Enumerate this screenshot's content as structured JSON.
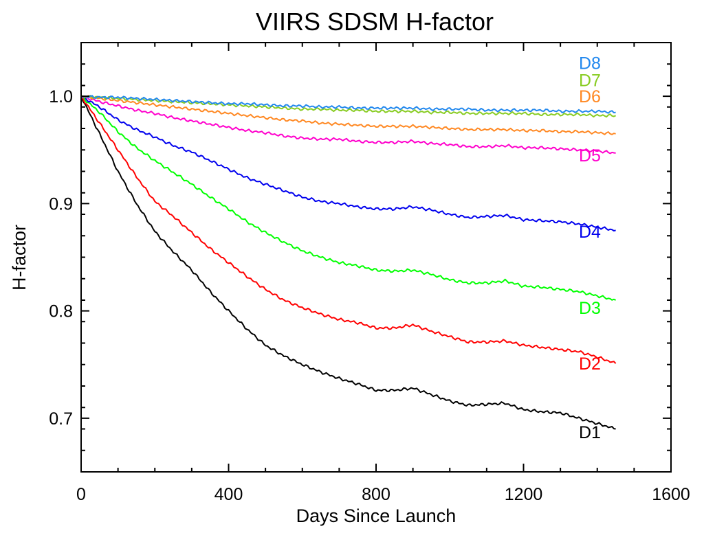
{
  "chart_data": {
    "type": "line",
    "title": "VIIRS SDSM H-factor",
    "xlabel": "Days Since Launch",
    "ylabel": "H-factor",
    "xlim": [
      0,
      1600
    ],
    "ylim": [
      0.65,
      1.05
    ],
    "xticks": [
      0,
      400,
      800,
      1200,
      1600
    ],
    "xtick_labels": [
      "0",
      "400",
      "800",
      "1200",
      "1600"
    ],
    "yticks": [
      0.7,
      0.8,
      0.9,
      1.0
    ],
    "ytick_labels": [
      "0.7",
      "0.8",
      "0.9",
      "1.0"
    ],
    "series": [
      {
        "name": "D1",
        "color": "#000000",
        "label_at": [
          1350,
          0.687
        ],
        "points": [
          [
            0,
            1.0
          ],
          [
            50,
            0.965
          ],
          [
            100,
            0.93
          ],
          [
            150,
            0.9
          ],
          [
            200,
            0.874
          ],
          [
            250,
            0.855
          ],
          [
            300,
            0.838
          ],
          [
            350,
            0.818
          ],
          [
            400,
            0.8
          ],
          [
            450,
            0.783
          ],
          [
            500,
            0.768
          ],
          [
            550,
            0.758
          ],
          [
            600,
            0.75
          ],
          [
            650,
            0.743
          ],
          [
            700,
            0.737
          ],
          [
            750,
            0.732
          ],
          [
            800,
            0.726
          ],
          [
            850,
            0.726
          ],
          [
            900,
            0.728
          ],
          [
            950,
            0.722
          ],
          [
            1000,
            0.716
          ],
          [
            1050,
            0.712
          ],
          [
            1100,
            0.713
          ],
          [
            1150,
            0.714
          ],
          [
            1200,
            0.708
          ],
          [
            1250,
            0.706
          ],
          [
            1300,
            0.705
          ],
          [
            1350,
            0.7
          ],
          [
            1400,
            0.695
          ],
          [
            1450,
            0.69
          ]
        ]
      },
      {
        "name": "D2",
        "color": "#ff0000",
        "label_at": [
          1350,
          0.751
        ],
        "points": [
          [
            0,
            1.0
          ],
          [
            50,
            0.975
          ],
          [
            100,
            0.95
          ],
          [
            150,
            0.925
          ],
          [
            200,
            0.902
          ],
          [
            250,
            0.888
          ],
          [
            300,
            0.873
          ],
          [
            350,
            0.858
          ],
          [
            400,
            0.845
          ],
          [
            450,
            0.832
          ],
          [
            500,
            0.82
          ],
          [
            550,
            0.81
          ],
          [
            600,
            0.803
          ],
          [
            650,
            0.797
          ],
          [
            700,
            0.792
          ],
          [
            750,
            0.789
          ],
          [
            800,
            0.784
          ],
          [
            850,
            0.784
          ],
          [
            900,
            0.787
          ],
          [
            950,
            0.781
          ],
          [
            1000,
            0.776
          ],
          [
            1050,
            0.771
          ],
          [
            1100,
            0.771
          ],
          [
            1150,
            0.772
          ],
          [
            1200,
            0.768
          ],
          [
            1250,
            0.766
          ],
          [
            1300,
            0.764
          ],
          [
            1350,
            0.762
          ],
          [
            1400,
            0.757
          ],
          [
            1450,
            0.751
          ]
        ]
      },
      {
        "name": "D3",
        "color": "#00ff00",
        "label_at": [
          1350,
          0.803
        ],
        "points": [
          [
            0,
            1.0
          ],
          [
            50,
            0.985
          ],
          [
            100,
            0.967
          ],
          [
            150,
            0.952
          ],
          [
            200,
            0.94
          ],
          [
            250,
            0.929
          ],
          [
            300,
            0.918
          ],
          [
            350,
            0.906
          ],
          [
            400,
            0.895
          ],
          [
            450,
            0.883
          ],
          [
            500,
            0.873
          ],
          [
            550,
            0.864
          ],
          [
            600,
            0.856
          ],
          [
            650,
            0.85
          ],
          [
            700,
            0.845
          ],
          [
            750,
            0.842
          ],
          [
            800,
            0.838
          ],
          [
            850,
            0.837
          ],
          [
            900,
            0.838
          ],
          [
            950,
            0.834
          ],
          [
            1000,
            0.829
          ],
          [
            1050,
            0.826
          ],
          [
            1100,
            0.826
          ],
          [
            1150,
            0.828
          ],
          [
            1200,
            0.823
          ],
          [
            1250,
            0.822
          ],
          [
            1300,
            0.82
          ],
          [
            1350,
            0.818
          ],
          [
            1400,
            0.814
          ],
          [
            1450,
            0.81
          ]
        ]
      },
      {
        "name": "D4",
        "color": "#0000ee",
        "label_at": [
          1350,
          0.874
        ],
        "points": [
          [
            0,
            1.0
          ],
          [
            50,
            0.99
          ],
          [
            100,
            0.978
          ],
          [
            150,
            0.969
          ],
          [
            200,
            0.962
          ],
          [
            250,
            0.954
          ],
          [
            300,
            0.948
          ],
          [
            350,
            0.94
          ],
          [
            400,
            0.932
          ],
          [
            450,
            0.924
          ],
          [
            500,
            0.918
          ],
          [
            550,
            0.912
          ],
          [
            600,
            0.906
          ],
          [
            650,
            0.902
          ],
          [
            700,
            0.9
          ],
          [
            750,
            0.897
          ],
          [
            800,
            0.895
          ],
          [
            850,
            0.895
          ],
          [
            900,
            0.897
          ],
          [
            950,
            0.894
          ],
          [
            1000,
            0.89
          ],
          [
            1050,
            0.887
          ],
          [
            1100,
            0.888
          ],
          [
            1150,
            0.889
          ],
          [
            1200,
            0.885
          ],
          [
            1250,
            0.884
          ],
          [
            1300,
            0.883
          ],
          [
            1350,
            0.881
          ],
          [
            1400,
            0.878
          ],
          [
            1450,
            0.875
          ]
        ]
      },
      {
        "name": "D5",
        "color": "#ff00cc",
        "label_at": [
          1350,
          0.945
        ],
        "points": [
          [
            0,
            1.0
          ],
          [
            50,
            0.995
          ],
          [
            100,
            0.991
          ],
          [
            150,
            0.987
          ],
          [
            200,
            0.984
          ],
          [
            250,
            0.98
          ],
          [
            300,
            0.977
          ],
          [
            350,
            0.974
          ],
          [
            400,
            0.971
          ],
          [
            450,
            0.968
          ],
          [
            500,
            0.966
          ],
          [
            550,
            0.963
          ],
          [
            600,
            0.961
          ],
          [
            650,
            0.96
          ],
          [
            700,
            0.96
          ],
          [
            750,
            0.958
          ],
          [
            800,
            0.957
          ],
          [
            850,
            0.957
          ],
          [
            900,
            0.958
          ],
          [
            950,
            0.956
          ],
          [
            1000,
            0.955
          ],
          [
            1050,
            0.953
          ],
          [
            1100,
            0.953
          ],
          [
            1150,
            0.954
          ],
          [
            1200,
            0.952
          ],
          [
            1250,
            0.952
          ],
          [
            1300,
            0.951
          ],
          [
            1350,
            0.95
          ],
          [
            1400,
            0.949
          ],
          [
            1450,
            0.947
          ]
        ]
      },
      {
        "name": "D6",
        "color": "#ff8822",
        "label_at": [
          1350,
          1.0
        ],
        "points": [
          [
            0,
            1.0
          ],
          [
            50,
            0.998
          ],
          [
            100,
            0.996
          ],
          [
            150,
            0.994
          ],
          [
            200,
            0.992
          ],
          [
            250,
            0.99
          ],
          [
            300,
            0.988
          ],
          [
            350,
            0.986
          ],
          [
            400,
            0.984
          ],
          [
            450,
            0.982
          ],
          [
            500,
            0.98
          ],
          [
            550,
            0.978
          ],
          [
            600,
            0.977
          ],
          [
            650,
            0.975
          ],
          [
            700,
            0.974
          ],
          [
            750,
            0.973
          ],
          [
            800,
            0.972
          ],
          [
            850,
            0.972
          ],
          [
            900,
            0.972
          ],
          [
            950,
            0.971
          ],
          [
            1000,
            0.97
          ],
          [
            1050,
            0.969
          ],
          [
            1100,
            0.969
          ],
          [
            1150,
            0.969
          ],
          [
            1200,
            0.968
          ],
          [
            1250,
            0.968
          ],
          [
            1300,
            0.967
          ],
          [
            1350,
            0.967
          ],
          [
            1400,
            0.966
          ],
          [
            1450,
            0.965
          ]
        ]
      },
      {
        "name": "D7",
        "color": "#88cc22",
        "label_at": [
          1350,
          1.015
        ],
        "points": [
          [
            0,
            1.0
          ],
          [
            50,
            0.999
          ],
          [
            100,
            0.998
          ],
          [
            150,
            0.997
          ],
          [
            200,
            0.996
          ],
          [
            250,
            0.995
          ],
          [
            300,
            0.994
          ],
          [
            350,
            0.993
          ],
          [
            400,
            0.992
          ],
          [
            450,
            0.991
          ],
          [
            500,
            0.99
          ],
          [
            550,
            0.989
          ],
          [
            600,
            0.988
          ],
          [
            650,
            0.988
          ],
          [
            700,
            0.987
          ],
          [
            750,
            0.987
          ],
          [
            800,
            0.986
          ],
          [
            850,
            0.986
          ],
          [
            900,
            0.986
          ],
          [
            950,
            0.985
          ],
          [
            1000,
            0.985
          ],
          [
            1050,
            0.984
          ],
          [
            1100,
            0.984
          ],
          [
            1150,
            0.984
          ],
          [
            1200,
            0.984
          ],
          [
            1250,
            0.983
          ],
          [
            1300,
            0.983
          ],
          [
            1350,
            0.983
          ],
          [
            1400,
            0.982
          ],
          [
            1450,
            0.982
          ]
        ]
      },
      {
        "name": "D8",
        "color": "#2288ee",
        "label_at": [
          1350,
          1.031
        ],
        "points": [
          [
            0,
            1.0
          ],
          [
            50,
            0.999
          ],
          [
            100,
            0.999
          ],
          [
            150,
            0.998
          ],
          [
            200,
            0.997
          ],
          [
            250,
            0.996
          ],
          [
            300,
            0.995
          ],
          [
            350,
            0.994
          ],
          [
            400,
            0.993
          ],
          [
            450,
            0.993
          ],
          [
            500,
            0.992
          ],
          [
            550,
            0.991
          ],
          [
            600,
            0.991
          ],
          [
            650,
            0.99
          ],
          [
            700,
            0.99
          ],
          [
            750,
            0.989
          ],
          [
            800,
            0.989
          ],
          [
            850,
            0.989
          ],
          [
            900,
            0.989
          ],
          [
            950,
            0.988
          ],
          [
            1000,
            0.988
          ],
          [
            1050,
            0.988
          ],
          [
            1100,
            0.987
          ],
          [
            1150,
            0.987
          ],
          [
            1200,
            0.987
          ],
          [
            1250,
            0.987
          ],
          [
            1300,
            0.986
          ],
          [
            1350,
            0.986
          ],
          [
            1400,
            0.986
          ],
          [
            1450,
            0.985
          ]
        ]
      }
    ]
  }
}
